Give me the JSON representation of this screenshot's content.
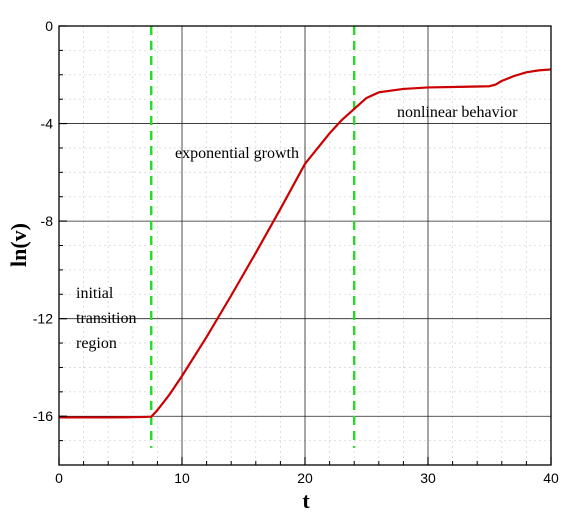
{
  "chart_data": {
    "type": "line",
    "title": "",
    "xlabel": "t",
    "ylabel": "ln(v)",
    "xlim": [
      0,
      40
    ],
    "ylim": [
      -18,
      0
    ],
    "x_ticks": [
      0,
      10,
      20,
      30,
      40
    ],
    "y_ticks": [
      0,
      -4,
      -8,
      -12,
      -16
    ],
    "x_tick_labels": [
      "0",
      "10",
      "20",
      "30",
      "40"
    ],
    "y_tick_labels": [
      "0",
      "-4",
      "-8",
      "-12",
      "-16"
    ],
    "grid": true,
    "series": [
      {
        "color": "#cc0000",
        "x": [
          0,
          2,
          4,
          6,
          7,
          7.5,
          8,
          9,
          10,
          12,
          14,
          16,
          18,
          20,
          22,
          23,
          24,
          25,
          26,
          28,
          30,
          32,
          34,
          35,
          35.5,
          36,
          37,
          38,
          39,
          40
        ],
        "y": [
          -16.05,
          -16.05,
          -16.05,
          -16.04,
          -16.03,
          -16.02,
          -15.75,
          -15.1,
          -14.35,
          -12.75,
          -11.05,
          -9.3,
          -7.5,
          -5.65,
          -4.4,
          -3.85,
          -3.4,
          -2.95,
          -2.72,
          -2.58,
          -2.52,
          -2.5,
          -2.48,
          -2.47,
          -2.4,
          -2.25,
          -2.05,
          -1.9,
          -1.82,
          -1.78
        ]
      }
    ],
    "phase_markers": [
      {
        "x": 7.5,
        "color": "#22dd22",
        "style": "dashed"
      },
      {
        "x": 24,
        "color": "#22dd22",
        "style": "dashed"
      }
    ],
    "annotations": {
      "initial": [
        "initial",
        "transition",
        "region"
      ],
      "exponential": "exponential growth",
      "nonlinear": "nonlinear behavior"
    }
  }
}
